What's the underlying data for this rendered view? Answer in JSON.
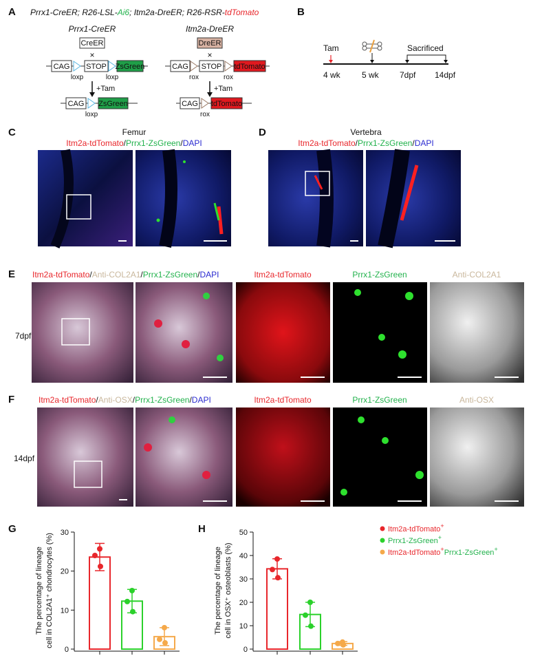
{
  "panel_labels": [
    "A",
    "B",
    "C",
    "D",
    "E",
    "F",
    "G",
    "H"
  ],
  "a": {
    "genotype": [
      "Prrx1-CreER; R26-LSL-",
      "Ai6",
      "; Itm2a-DreER; R26-RSR-",
      "tdTomato"
    ],
    "constructs": [
      {
        "title": "Prrx1-CreER",
        "recombinase": "CreER",
        "cross": "×",
        "before": [
          "CAG",
          "STOP",
          "ZsGreen"
        ],
        "before_sites": [
          "loxp",
          "loxp"
        ],
        "treatment": "+Tam",
        "after": [
          "CAG",
          "ZsGreen"
        ],
        "after_site": "loxp"
      },
      {
        "title": "Itm2a-DreER",
        "recombinase": "DreER",
        "cross": "×",
        "before": [
          "CAG",
          "STOP",
          "tdTomato"
        ],
        "before_sites": [
          "rox",
          "rox"
        ],
        "treatment": "+Tam",
        "after": [
          "CAG",
          "tdTomato"
        ],
        "after_site": "rox"
      }
    ]
  },
  "b": {
    "events": [
      "Tam",
      "Sacrificed"
    ],
    "timepoints": [
      "4 wk",
      "5 wk",
      "7dpf",
      "14dpf"
    ]
  },
  "c": {
    "tissue": "Femur",
    "stain": [
      "Itm2a-tdTomato",
      "/",
      "Prrx1-ZsGreen",
      "/",
      "DAPI"
    ]
  },
  "d": {
    "tissue": "Vertebra",
    "stain": [
      "Itm2a-tdTomato",
      "/",
      "Prrx1-ZsGreen",
      "/",
      "DAPI"
    ]
  },
  "e": {
    "stain": [
      "Itm2a-tdTomato",
      "/",
      "Anti-COL2A1",
      "/",
      "Prrx1-ZsGreen",
      "/",
      "DAPI"
    ],
    "channels": [
      "Itm2a-tdTomato",
      "Prrx1-ZsGreen",
      "Anti-COL2A1"
    ],
    "timepoint": "7dpf"
  },
  "f": {
    "stain": [
      "Itm2a-tdTomato",
      "/",
      "Anti-OSX",
      "/",
      "Prrx1-ZsGreen",
      "/",
      "DAPI"
    ],
    "channels": [
      "Itm2a-tdTomato",
      "Prrx1-ZsGreen",
      "Anti-OSX"
    ],
    "timepoint": "14dpf"
  },
  "legend": [
    [
      "Itm2a-tdTomato",
      "+"
    ],
    [
      "Prrx1-ZsGreen",
      "+"
    ],
    [
      "Itm2a-tdTomato",
      "+",
      "Prrx1-ZsGreen",
      "+"
    ]
  ],
  "legend_colors": [
    "#e8262b",
    "#2bd12b",
    "#f5a94a"
  ],
  "chart_data": [
    {
      "type": "bar",
      "ylabel": [
        "The percentage of lineage",
        "cell in COL2A1⁺ chondrocytes (%)"
      ],
      "categories": [
        null,
        null,
        null
      ],
      "values": [
        23.6,
        12.3,
        3.2
      ],
      "errors": [
        3.5,
        3.0,
        2.3
      ],
      "points": [
        [
          25.7,
          24.0,
          21.2
        ],
        [
          15.0,
          12.2,
          9.6
        ],
        [
          5.5,
          2.5,
          1.6
        ]
      ],
      "colors": [
        "#e8262b",
        "#2bd12b",
        "#f5a94a"
      ],
      "ylim": [
        0,
        30
      ],
      "yticks": [
        0,
        10,
        20,
        30
      ]
    },
    {
      "type": "bar",
      "ylabel": [
        "The percentage of lineage",
        "cell in OSX⁺ osteoblasts (%)"
      ],
      "categories": [
        null,
        null,
        null
      ],
      "values": [
        34.3,
        14.8,
        2.4
      ],
      "errors": [
        4.3,
        5.2,
        0.8
      ],
      "points": [
        [
          38.5,
          34.0,
          30.5
        ],
        [
          20.0,
          14.5,
          9.8
        ],
        [
          3.0,
          2.4,
          1.8
        ]
      ],
      "colors": [
        "#e8262b",
        "#2bd12b",
        "#f5a94a"
      ],
      "ylim": [
        0,
        50
      ],
      "yticks": [
        0,
        10,
        20,
        30,
        40,
        50
      ]
    }
  ]
}
